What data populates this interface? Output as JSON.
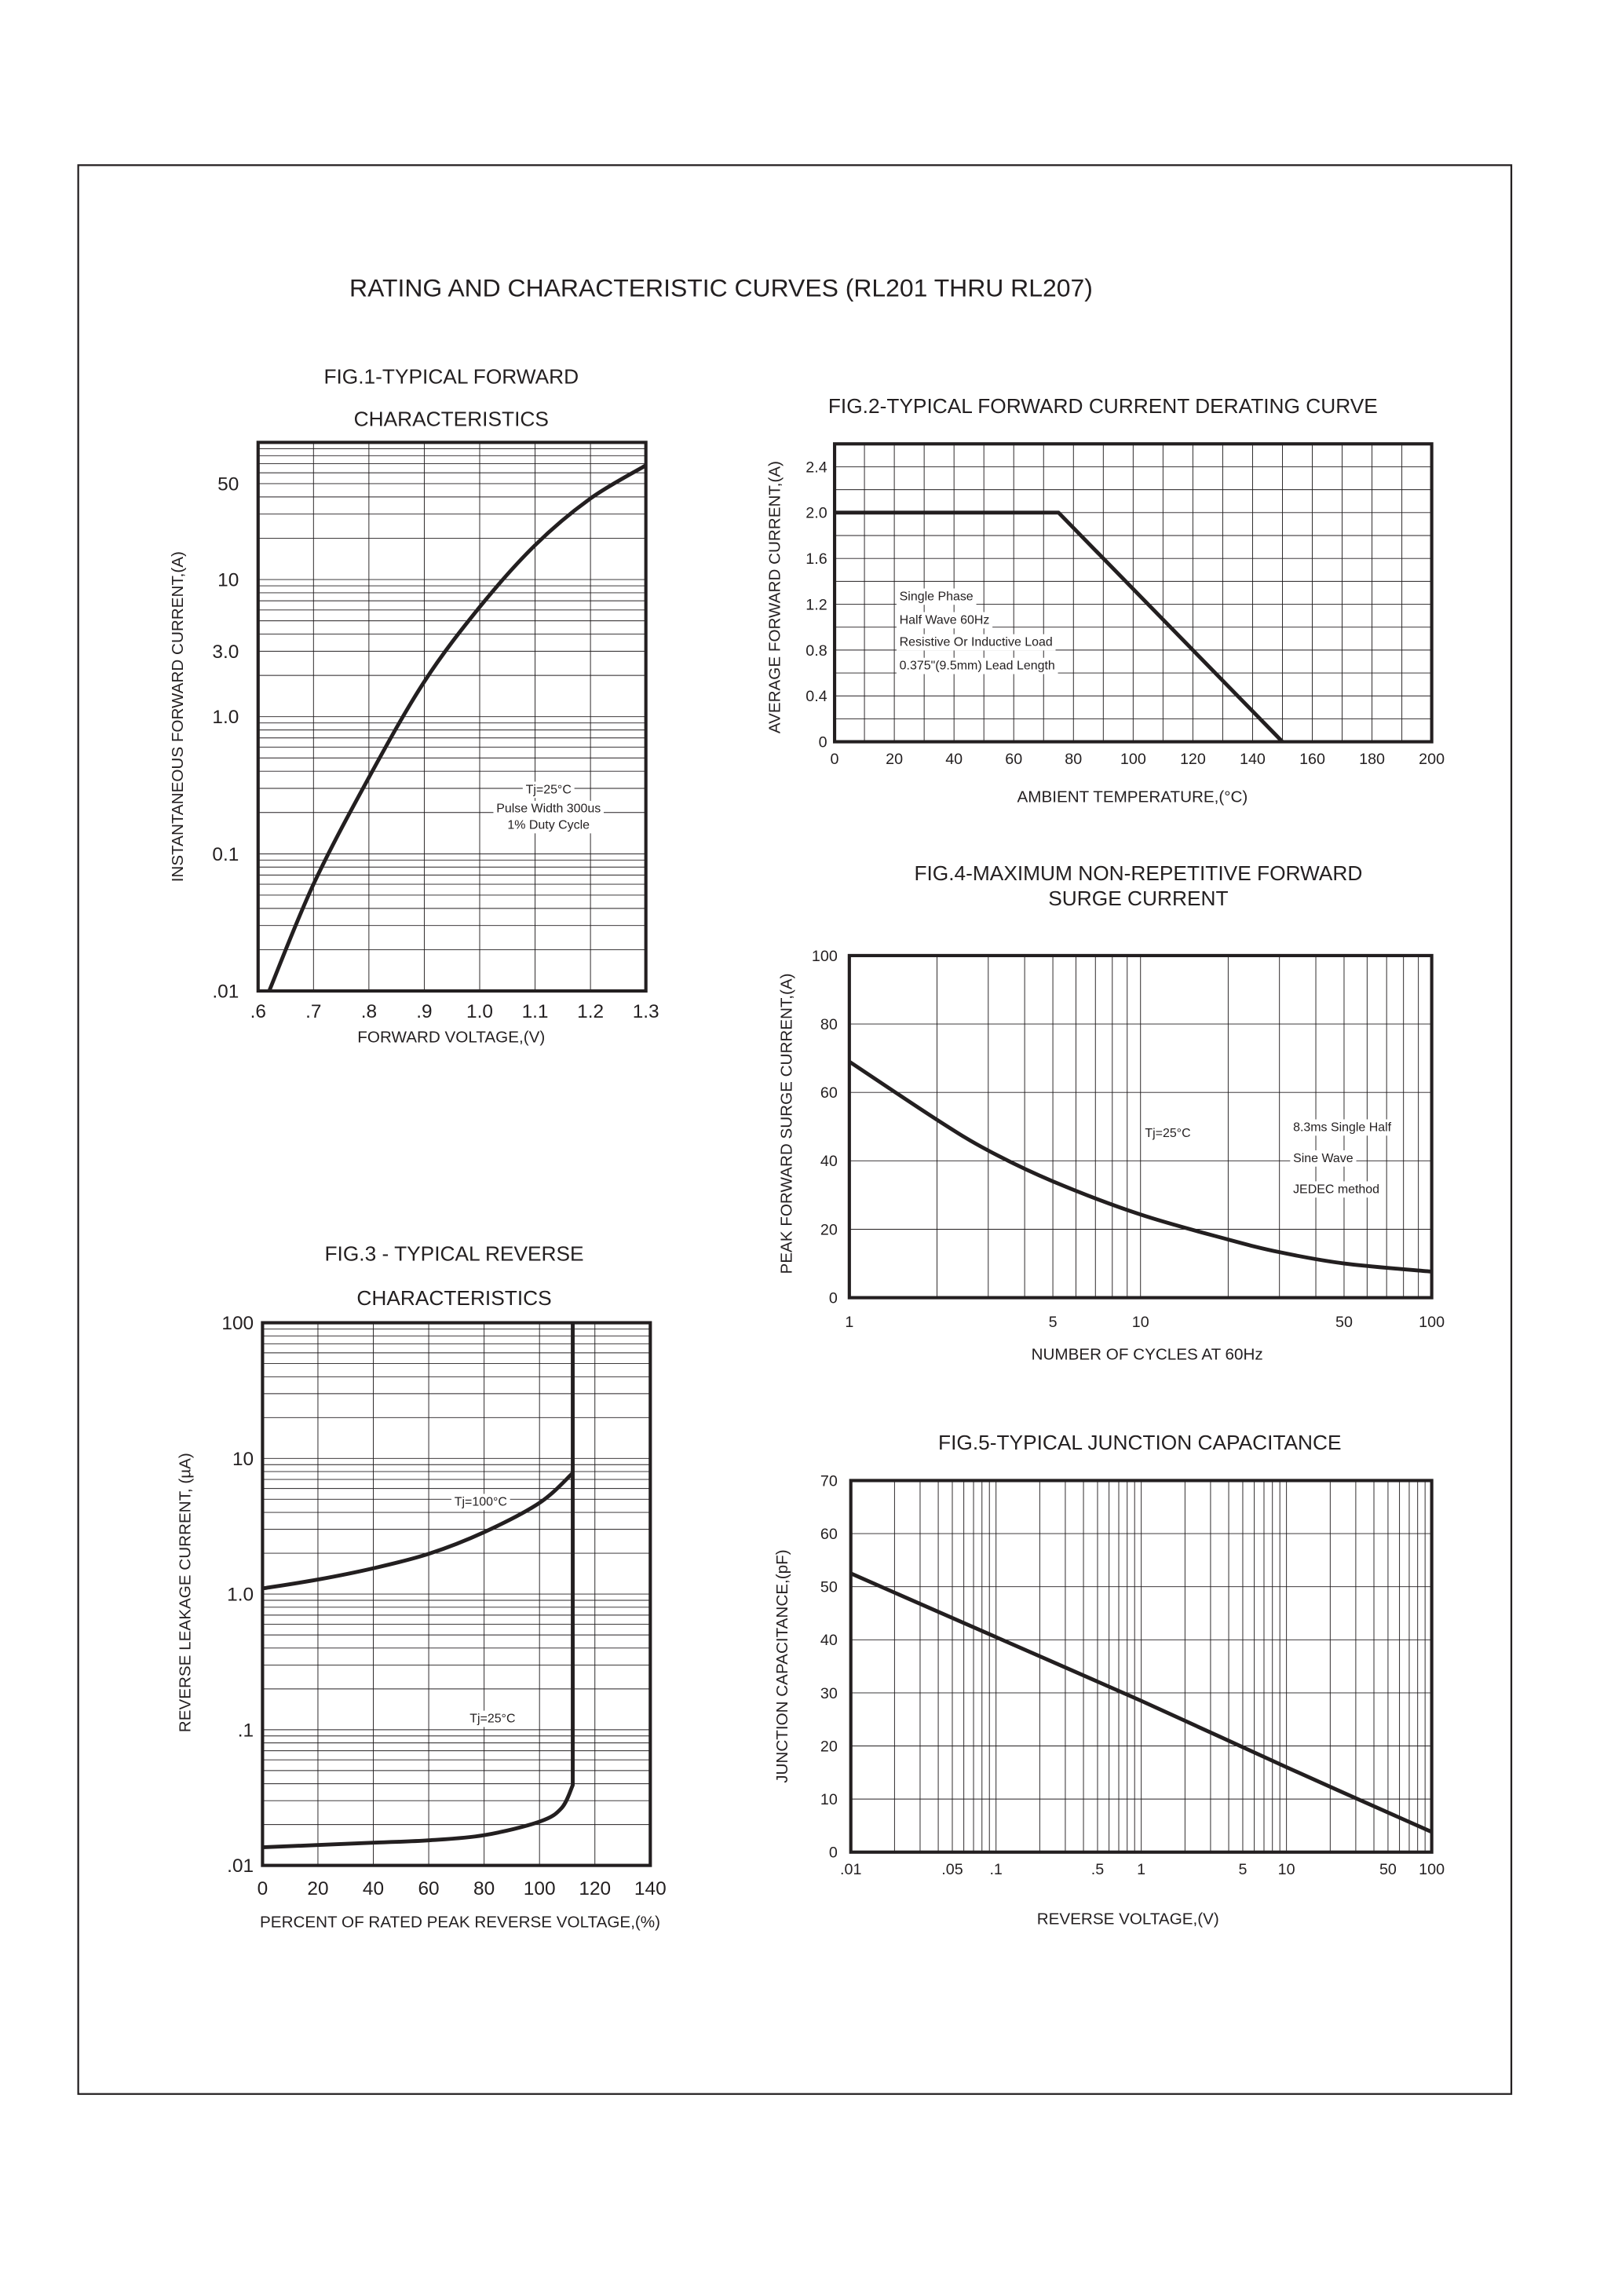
{
  "page_title": "RATING AND CHARACTERISTIC CURVES (RL201 THRU RL207)",
  "colors": {
    "ink": "#231f20",
    "background": "#ffffff"
  },
  "chart_data": [
    {
      "type": "line",
      "title": [
        "FIG.1-TYPICAL FORWARD",
        "CHARACTERISTICS"
      ],
      "xlabel": "FORWARD VOLTAGE,(V)",
      "ylabel": "INSTANTANEOUS FORWARD CURRENT,(A)",
      "xscale": "linear",
      "yscale": "log",
      "xlim": [
        0.6,
        1.3
      ],
      "ylim": [
        0.01,
        100
      ],
      "grid": true,
      "x_grid_step": 0.1,
      "y_grid": "log-minor",
      "xticks": [
        {
          "v": 0.6,
          "t": ".6"
        },
        {
          "v": 0.7,
          "t": ".7"
        },
        {
          "v": 0.8,
          "t": ".8"
        },
        {
          "v": 0.9,
          "t": ".9"
        },
        {
          "v": 1.0,
          "t": "1.0"
        },
        {
          "v": 1.1,
          "t": "1.1"
        },
        {
          "v": 1.2,
          "t": "1.2"
        },
        {
          "v": 1.3,
          "t": "1.3"
        }
      ],
      "yticks": [
        {
          "v": 50,
          "t": "50"
        },
        {
          "v": 10,
          "t": "10"
        },
        {
          "v": 3,
          "t": "3.0"
        },
        {
          "v": 1,
          "t": "1.0"
        },
        {
          "v": 0.1,
          "t": "0.1"
        },
        {
          "v": 0.01,
          "t": ".01"
        }
      ],
      "series": [
        {
          "x": [
            0.62,
            0.7,
            0.8,
            0.9,
            1.0,
            1.1,
            1.2,
            1.3
          ],
          "y": [
            0.01,
            0.06,
            0.36,
            1.8,
            6.3,
            17.8,
            39,
            68
          ]
        }
      ],
      "annotations": [
        "Tj=25°C",
        "Pulse Width 300us",
        "1% Duty Cycle"
      ]
    },
    {
      "type": "line",
      "title": [
        "FIG.2-TYPICAL FORWARD CURRENT DERATING CURVE"
      ],
      "xlabel": "AMBIENT TEMPERATURE,(°C)",
      "ylabel": "AVERAGE FORWARD CURRENT,(A)",
      "xscale": "linear",
      "yscale": "linear",
      "xlim": [
        0,
        200
      ],
      "ylim": [
        0,
        2.6
      ],
      "grid": true,
      "x_grid_step": 10,
      "y_grid_step": 0.2,
      "xticks": [
        {
          "v": 0,
          "t": "0"
        },
        {
          "v": 20,
          "t": "20"
        },
        {
          "v": 40,
          "t": "40"
        },
        {
          "v": 60,
          "t": "60"
        },
        {
          "v": 80,
          "t": "80"
        },
        {
          "v": 100,
          "t": "100"
        },
        {
          "v": 120,
          "t": "120"
        },
        {
          "v": 140,
          "t": "140"
        },
        {
          "v": 160,
          "t": "160"
        },
        {
          "v": 180,
          "t": "180"
        },
        {
          "v": 200,
          "t": "200"
        }
      ],
      "yticks": [
        {
          "v": 0,
          "t": "0"
        },
        {
          "v": 0.4,
          "t": "0.4"
        },
        {
          "v": 0.8,
          "t": "0.8"
        },
        {
          "v": 1.2,
          "t": "1.2"
        },
        {
          "v": 1.6,
          "t": "1.6"
        },
        {
          "v": 2.0,
          "t": "2.0"
        },
        {
          "v": 2.4,
          "t": "2.4"
        }
      ],
      "series": [
        {
          "x": [
            0,
            75,
            150
          ],
          "y": [
            2.0,
            2.0,
            0
          ]
        }
      ],
      "annotations": [
        "Single Phase",
        "Half Wave 60Hz",
        "Resistive Or Inductive Load",
        "0.375\"(9.5mm) Lead Length"
      ]
    },
    {
      "type": "line",
      "title": [
        "FIG.3 - TYPICAL REVERSE",
        "CHARACTERISTICS"
      ],
      "xlabel": "PERCENT OF RATED PEAK REVERSE VOLTAGE,(%)",
      "ylabel": "REVERSE LEAKAGE CURRENT, (µA)",
      "xscale": "linear",
      "yscale": "log",
      "xlim": [
        0,
        140
      ],
      "ylim": [
        0.01,
        100
      ],
      "grid": true,
      "x_grid_step": 20,
      "y_grid": "log-minor",
      "xticks": [
        {
          "v": 0,
          "t": "0"
        },
        {
          "v": 20,
          "t": "20"
        },
        {
          "v": 40,
          "t": "40"
        },
        {
          "v": 60,
          "t": "60"
        },
        {
          "v": 80,
          "t": "80"
        },
        {
          "v": 100,
          "t": "100"
        },
        {
          "v": 120,
          "t": "120"
        },
        {
          "v": 140,
          "t": "140"
        }
      ],
      "yticks": [
        {
          "v": 100,
          "t": "100"
        },
        {
          "v": 10,
          "t": "10"
        },
        {
          "v": 1,
          "t": "1.0"
        },
        {
          "v": 0.1,
          "t": ".1"
        },
        {
          "v": 0.01,
          "t": ".01"
        }
      ],
      "series": [
        {
          "name": "Tj=100°C",
          "x": [
            0,
            20,
            40,
            60,
            80,
            100,
            112
          ],
          "y": [
            1.1,
            1.28,
            1.55,
            1.98,
            2.86,
            4.7,
            7.8
          ]
        },
        {
          "name": "Tj=25°C",
          "x": [
            0,
            40,
            60,
            80,
            100,
            108,
            112,
            112
          ],
          "y": [
            0.0136,
            0.0147,
            0.0153,
            0.0167,
            0.021,
            0.0265,
            0.039,
            100
          ]
        }
      ],
      "annotations": [
        "Tj=100°C",
        "Tj=25°C"
      ]
    },
    {
      "type": "line",
      "title": [
        "FIG.4-MAXIMUM NON-REPETITIVE FORWARD",
        "SURGE CURRENT"
      ],
      "xlabel": "NUMBER OF CYCLES AT 60Hz",
      "ylabel": "PEAK FORWARD SURGE CURRENT,(A)",
      "xscale": "log",
      "yscale": "linear",
      "xlim": [
        1,
        100
      ],
      "ylim": [
        0,
        100
      ],
      "grid": true,
      "x_grid": "log-minor",
      "y_grid_step": 20,
      "xticks": [
        {
          "v": 1,
          "t": "1"
        },
        {
          "v": 5,
          "t": "5"
        },
        {
          "v": 10,
          "t": "10"
        },
        {
          "v": 50,
          "t": "50"
        },
        {
          "v": 100,
          "t": "100"
        }
      ],
      "yticks": [
        {
          "v": 0,
          "t": "0"
        },
        {
          "v": 20,
          "t": "20"
        },
        {
          "v": 40,
          "t": "40"
        },
        {
          "v": 60,
          "t": "60"
        },
        {
          "v": 80,
          "t": "80"
        },
        {
          "v": 100,
          "t": "100"
        }
      ],
      "series": [
        {
          "x": [
            1,
            2,
            3,
            5,
            10,
            20,
            30,
            50,
            100
          ],
          "y": [
            69,
            52,
            43,
            34,
            24.3,
            17,
            13.3,
            10,
            7.6
          ]
        }
      ],
      "annotations": [
        "Tj=25°C",
        "8.3ms Single Half",
        "Sine Wave",
        "JEDEC method"
      ]
    },
    {
      "type": "line",
      "title": [
        "FIG.5-TYPICAL JUNCTION CAPACITANCE"
      ],
      "xlabel": "REVERSE VOLTAGE,(V)",
      "ylabel": "JUNCTION CAPACITANCE,(pF)",
      "xscale": "log",
      "yscale": "linear",
      "xlim": [
        0.01,
        100
      ],
      "ylim": [
        0,
        70
      ],
      "grid": true,
      "x_grid": "log-minor",
      "y_grid_step": 10,
      "xticks": [
        {
          "v": 0.01,
          "t": ".01"
        },
        {
          "v": 0.05,
          "t": ".05"
        },
        {
          "v": 0.1,
          "t": ".1"
        },
        {
          "v": 0.5,
          "t": ".5"
        },
        {
          "v": 1,
          "t": "1"
        },
        {
          "v": 5,
          "t": "5"
        },
        {
          "v": 10,
          "t": "10"
        },
        {
          "v": 50,
          "t": "50"
        },
        {
          "v": 100,
          "t": "100"
        }
      ],
      "yticks": [
        {
          "v": 0,
          "t": "0"
        },
        {
          "v": 10,
          "t": "10"
        },
        {
          "v": 20,
          "t": "20"
        },
        {
          "v": 30,
          "t": "30"
        },
        {
          "v": 40,
          "t": "40"
        },
        {
          "v": 50,
          "t": "50"
        },
        {
          "v": 60,
          "t": "60"
        },
        {
          "v": 70,
          "t": "70"
        }
      ],
      "series": [
        {
          "x": [
            0.01,
            0.1,
            1,
            10,
            100
          ],
          "y": [
            52.5,
            40.5,
            28.5,
            16,
            3.8
          ]
        }
      ],
      "annotations": []
    }
  ]
}
